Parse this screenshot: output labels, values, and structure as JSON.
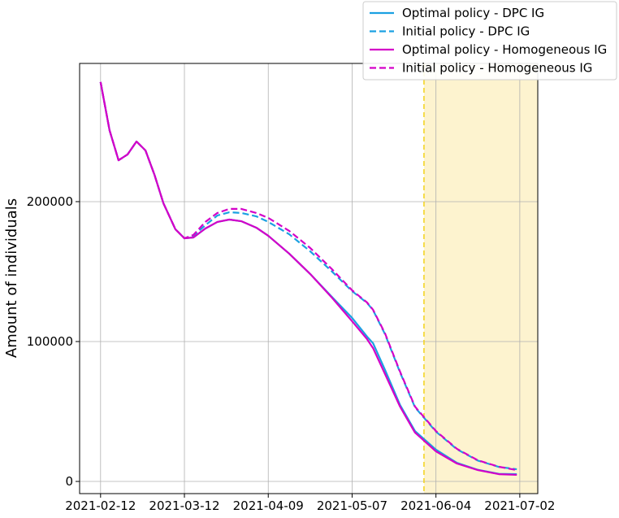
{
  "chart_data": {
    "type": "line",
    "ylabel": "Amount of individuals",
    "x": [
      "2021-02-12",
      "2021-02-15",
      "2021-02-18",
      "2021-02-21",
      "2021-02-24",
      "2021-02-27",
      "2021-03-02",
      "2021-03-05",
      "2021-03-09",
      "2021-03-12",
      "2021-03-15",
      "2021-03-19",
      "2021-03-23",
      "2021-03-27",
      "2021-03-31",
      "2021-04-05",
      "2021-04-09",
      "2021-04-16",
      "2021-04-23",
      "2021-04-30",
      "2021-05-07",
      "2021-05-12",
      "2021-05-14",
      "2021-05-18",
      "2021-05-23",
      "2021-05-28",
      "2021-06-04",
      "2021-06-11",
      "2021-06-18",
      "2021-06-25",
      "2021-07-01"
    ],
    "series": [
      {
        "name": "Optimal policy - DPC IG",
        "color": "#1ba1e2",
        "linestyle": "solid",
        "values": [
          285500,
          251000,
          229600,
          233700,
          243000,
          236600,
          219200,
          198800,
          180200,
          173800,
          174400,
          180800,
          185500,
          187200,
          186000,
          181400,
          175600,
          162800,
          148300,
          132500,
          116900,
          103500,
          98800,
          79700,
          54700,
          36000,
          22700,
          13300,
          8300,
          5400,
          5200
        ]
      },
      {
        "name": "Initial policy - DPC IG",
        "color": "#1ba1e2",
        "linestyle": "dashed",
        "values": [
          285500,
          251000,
          229600,
          233700,
          243000,
          236600,
          219200,
          198800,
          180200,
          173800,
          175800,
          183100,
          190100,
          192400,
          191900,
          189500,
          185500,
          176700,
          164500,
          150600,
          136000,
          127600,
          122400,
          105200,
          78000,
          53000,
          35600,
          23000,
          14900,
          10400,
          8700
        ]
      },
      {
        "name": "Optimal policy - Homogeneous IG",
        "color": "#d400c8",
        "linestyle": "solid",
        "values": [
          285500,
          251000,
          229600,
          233700,
          243000,
          236600,
          219200,
          198800,
          180200,
          173800,
          174400,
          180800,
          185500,
          187200,
          186000,
          181400,
          175600,
          162800,
          148300,
          132000,
          114500,
          101700,
          95300,
          76700,
          53500,
          34900,
          21500,
          12800,
          8100,
          5200,
          4700
        ]
      },
      {
        "name": "Initial policy - Homogeneous IG",
        "color": "#d400c8",
        "linestyle": "dashed",
        "values": [
          285500,
          251000,
          229600,
          233700,
          243000,
          236600,
          219200,
          198800,
          180200,
          173800,
          176200,
          185500,
          191900,
          194800,
          194800,
          191900,
          188400,
          179100,
          166900,
          152300,
          136600,
          127900,
          122700,
          105800,
          78500,
          53500,
          36000,
          23300,
          15100,
          10500,
          8100
        ]
      }
    ],
    "xlim": [
      "2021-02-05",
      "2021-07-08"
    ],
    "xticks": [
      "2021-02-12",
      "2021-03-12",
      "2021-04-09",
      "2021-05-07",
      "2021-06-04",
      "2021-07-02"
    ],
    "ylim": [
      -8700,
      298800
    ],
    "yticks": [
      0,
      100000,
      200000
    ],
    "grid": true,
    "highlight_start": "2021-05-31",
    "highlight_color": "#fdf3cf",
    "highlight_line_color": "#f2d21a",
    "legend_position": "upper right"
  }
}
